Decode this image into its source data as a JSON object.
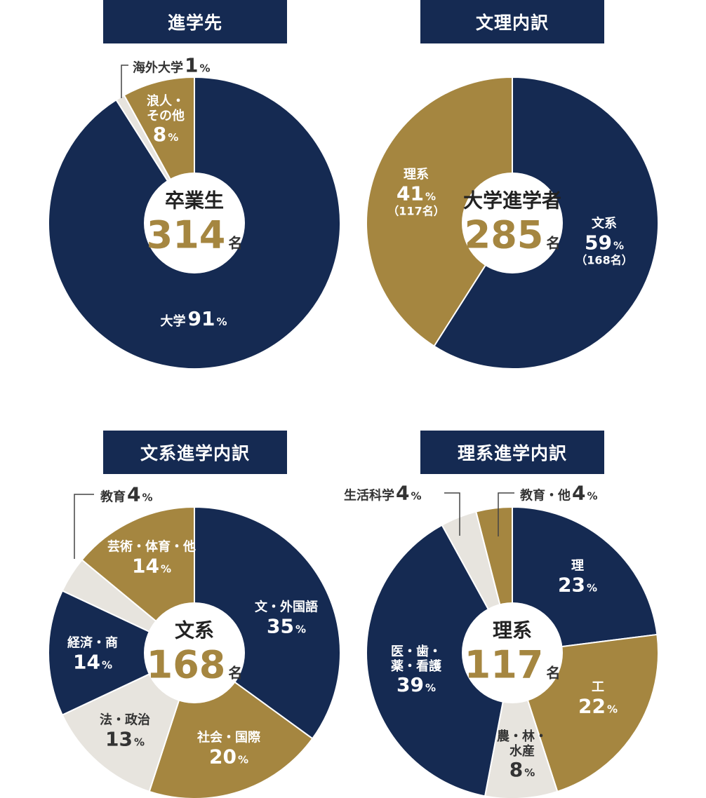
{
  "colors": {
    "navy": "#152a52",
    "gold": "#a58640",
    "light": "#e7e4de",
    "leader": "#444444"
  },
  "charts": [
    {
      "header": "進学先",
      "center": {
        "title": "卒業生",
        "number": "314",
        "unit": "名"
      },
      "chart_data": {
        "type": "pie",
        "slices": [
          {
            "label": "大学",
            "value": 91,
            "pct": "91",
            "unit": "%",
            "color": "navy"
          },
          {
            "label": "海外大学",
            "value": 1,
            "pct": "1",
            "unit": "%",
            "color": "light"
          },
          {
            "label": "浪人・その他",
            "value": 8,
            "pct": "8",
            "unit": "%",
            "color": "gold"
          }
        ]
      }
    },
    {
      "header": "文理内訳",
      "center": {
        "title": "大学進学者",
        "number": "285",
        "unit": "名"
      },
      "chart_data": {
        "type": "pie",
        "slices": [
          {
            "label": "文系",
            "value": 59,
            "pct": "59",
            "unit": "%",
            "sub": "（168名）",
            "color": "navy"
          },
          {
            "label": "理系",
            "value": 41,
            "pct": "41",
            "unit": "%",
            "sub": "（117名）",
            "color": "gold"
          }
        ]
      }
    },
    {
      "header": "文系進学内訳",
      "center": {
        "title": "文系",
        "number": "168",
        "unit": "名"
      },
      "chart_data": {
        "type": "pie",
        "slices": [
          {
            "label": "文・外国語",
            "value": 35,
            "pct": "35",
            "unit": "%",
            "color": "navy"
          },
          {
            "label": "社会・国際",
            "value": 20,
            "pct": "20",
            "unit": "%",
            "color": "gold"
          },
          {
            "label": "法・政治",
            "value": 13,
            "pct": "13",
            "unit": "%",
            "color": "light"
          },
          {
            "label": "経済・商",
            "value": 14,
            "pct": "14",
            "unit": "%",
            "color": "navy"
          },
          {
            "label": "教育",
            "value": 4,
            "pct": "4",
            "unit": "%",
            "color": "light"
          },
          {
            "label": "芸術・体育・他",
            "value": 14,
            "pct": "14",
            "unit": "%",
            "color": "gold"
          }
        ]
      }
    },
    {
      "header": "理系進学内訳",
      "center": {
        "title": "理系",
        "number": "117",
        "unit": "名"
      },
      "chart_data": {
        "type": "pie",
        "slices": [
          {
            "label": "理",
            "value": 23,
            "pct": "23",
            "unit": "%",
            "color": "navy"
          },
          {
            "label": "工",
            "value": 22,
            "pct": "22",
            "unit": "%",
            "color": "gold"
          },
          {
            "label": "農・林・水産",
            "value": 8,
            "pct": "8",
            "unit": "%",
            "color": "light"
          },
          {
            "label": "医・歯・薬・看護",
            "value": 39,
            "pct": "39",
            "unit": "%",
            "color": "navy"
          },
          {
            "label": "生活科学",
            "value": 4,
            "pct": "4",
            "unit": "%",
            "color": "light"
          },
          {
            "label": "教育・他",
            "value": 4,
            "pct": "4",
            "unit": "%",
            "color": "gold"
          }
        ]
      }
    }
  ]
}
